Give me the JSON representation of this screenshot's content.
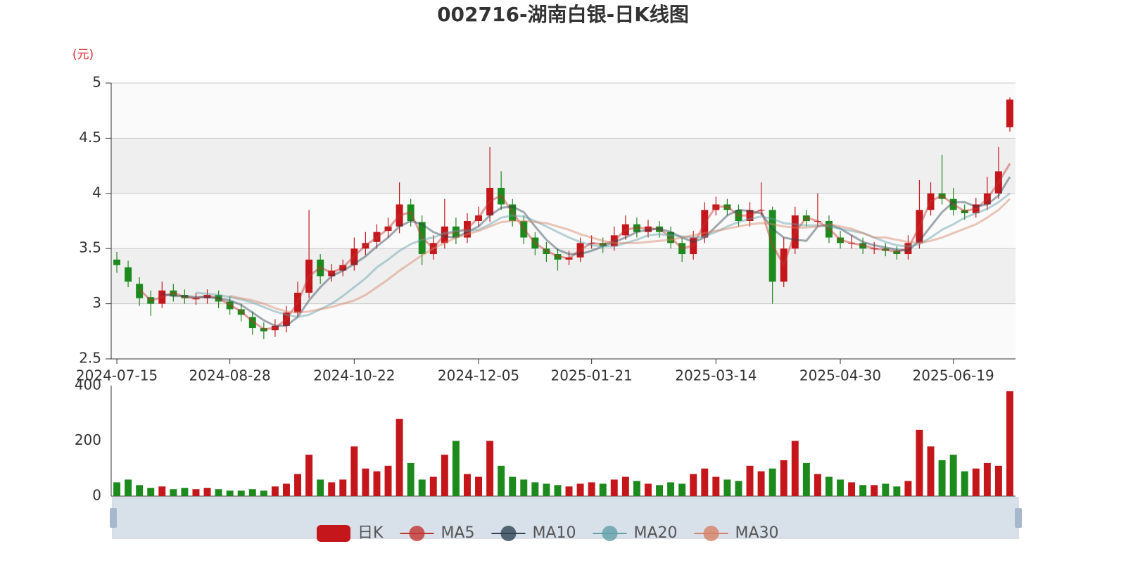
{
  "chart_data": {
    "type": "candlestick",
    "title": "002716-湖南白银-日K线图",
    "y_label": "(元)",
    "grid": true,
    "up_color": "#c4161b",
    "down_color": "#1d8a1d",
    "ylim": [
      2.5,
      5
    ],
    "yticks": [
      2.5,
      3,
      3.5,
      4,
      4.5,
      5
    ],
    "categories": [
      "2024-07-15",
      null,
      null,
      null,
      null,
      null,
      null,
      null,
      null,
      null,
      "2024-08-28",
      null,
      null,
      null,
      null,
      null,
      null,
      null,
      null,
      null,
      null,
      "2024-10-22",
      null,
      null,
      null,
      null,
      null,
      null,
      null,
      null,
      null,
      null,
      "2024-12-05",
      null,
      null,
      null,
      null,
      null,
      null,
      null,
      null,
      null,
      "2025-01-21",
      null,
      null,
      null,
      null,
      null,
      null,
      null,
      null,
      null,
      null,
      "2025-03-14",
      null,
      null,
      null,
      null,
      null,
      null,
      null,
      null,
      null,
      null,
      "2025-04-30",
      null,
      null,
      null,
      null,
      null,
      null,
      null,
      null,
      null,
      "2025-06-19",
      null,
      null,
      null,
      null,
      null
    ],
    "candles": {
      "name": "日K",
      "open": [
        3.4,
        3.33,
        3.18,
        3.06,
        3.0,
        3.12,
        3.08,
        3.04,
        3.05,
        3.08,
        3.02,
        2.95,
        2.88,
        2.78,
        2.76,
        2.8,
        2.92,
        3.1,
        3.4,
        3.25,
        3.3,
        3.35,
        3.5,
        3.56,
        3.66,
        3.7,
        3.9,
        3.74,
        3.45,
        3.55,
        3.7,
        3.6,
        3.75,
        3.8,
        4.05,
        3.9,
        3.75,
        3.6,
        3.5,
        3.45,
        3.4,
        3.42,
        3.55,
        3.55,
        3.52,
        3.62,
        3.72,
        3.65,
        3.7,
        3.65,
        3.55,
        3.45,
        3.6,
        3.85,
        3.9,
        3.85,
        3.75,
        3.85,
        3.85,
        3.2,
        3.5,
        3.8,
        3.75,
        3.75,
        3.6,
        3.55,
        3.55,
        3.5,
        3.5,
        3.48,
        3.45,
        3.55,
        3.85,
        4.0,
        3.95,
        3.85,
        3.82,
        3.9,
        4.0,
        4.6
      ],
      "close": [
        3.35,
        3.2,
        3.05,
        3.0,
        3.12,
        3.07,
        3.05,
        3.05,
        3.08,
        3.02,
        2.95,
        2.9,
        2.78,
        2.75,
        2.8,
        2.92,
        3.1,
        3.4,
        3.25,
        3.3,
        3.35,
        3.5,
        3.55,
        3.65,
        3.7,
        3.9,
        3.75,
        3.45,
        3.55,
        3.7,
        3.6,
        3.75,
        3.8,
        4.05,
        3.9,
        3.75,
        3.6,
        3.5,
        3.45,
        3.4,
        3.42,
        3.55,
        3.55,
        3.52,
        3.62,
        3.72,
        3.65,
        3.7,
        3.65,
        3.55,
        3.45,
        3.6,
        3.85,
        3.9,
        3.85,
        3.75,
        3.85,
        3.85,
        3.2,
        3.5,
        3.8,
        3.75,
        3.75,
        3.6,
        3.55,
        3.55,
        3.5,
        3.5,
        3.48,
        3.45,
        3.55,
        3.85,
        4.0,
        3.95,
        3.85,
        3.82,
        3.9,
        4.0,
        4.2,
        4.85
      ],
      "high": [
        3.47,
        3.39,
        3.24,
        3.12,
        3.2,
        3.18,
        3.13,
        3.1,
        3.13,
        3.12,
        3.07,
        3.0,
        2.93,
        2.83,
        2.86,
        2.98,
        3.2,
        3.85,
        3.45,
        3.36,
        3.4,
        3.6,
        3.65,
        3.72,
        3.78,
        4.1,
        3.95,
        3.8,
        3.62,
        3.95,
        3.78,
        3.82,
        3.88,
        4.42,
        4.2,
        3.95,
        3.8,
        3.65,
        3.56,
        3.5,
        3.48,
        3.6,
        3.62,
        3.6,
        3.7,
        3.8,
        3.78,
        3.76,
        3.75,
        3.7,
        3.6,
        3.66,
        3.92,
        3.97,
        3.95,
        3.9,
        3.92,
        4.1,
        3.88,
        3.6,
        3.88,
        3.85,
        4.0,
        3.8,
        3.66,
        3.62,
        3.6,
        3.56,
        3.55,
        3.52,
        3.62,
        4.12,
        4.1,
        4.35,
        4.05,
        3.9,
        3.96,
        4.15,
        4.42,
        4.87
      ],
      "low": [
        3.28,
        3.15,
        2.98,
        2.89,
        2.96,
        3.02,
        3.0,
        2.99,
        3.0,
        2.96,
        2.9,
        2.84,
        2.72,
        2.68,
        2.7,
        2.74,
        2.88,
        3.05,
        3.18,
        3.2,
        3.25,
        3.3,
        3.44,
        3.5,
        3.6,
        3.64,
        3.7,
        3.35,
        3.4,
        3.5,
        3.54,
        3.55,
        3.7,
        3.74,
        3.85,
        3.7,
        3.54,
        3.44,
        3.38,
        3.3,
        3.35,
        3.38,
        3.5,
        3.46,
        3.48,
        3.58,
        3.6,
        3.6,
        3.6,
        3.5,
        3.38,
        3.4,
        3.55,
        3.8,
        3.8,
        3.7,
        3.7,
        3.8,
        3.0,
        3.15,
        3.45,
        3.7,
        3.7,
        3.55,
        3.5,
        3.5,
        3.45,
        3.45,
        3.43,
        3.4,
        3.4,
        3.5,
        3.8,
        3.9,
        3.8,
        3.76,
        3.78,
        3.85,
        3.95,
        4.56
      ]
    },
    "ma": [
      {
        "name": "MA5",
        "color": "#c23531",
        "values": [
          null,
          null,
          3.13,
          3.03,
          3.06,
          3.1,
          3.06,
          3.05,
          3.07,
          3.05,
          2.99,
          2.93,
          2.84,
          2.77,
          2.78,
          2.86,
          3.01,
          3.25,
          3.33,
          3.28,
          3.33,
          3.43,
          3.53,
          3.6,
          3.68,
          3.8,
          3.83,
          3.6,
          3.5,
          3.63,
          3.65,
          3.68,
          3.78,
          3.93,
          3.98,
          3.83,
          3.68,
          3.55,
          3.48,
          3.43,
          3.41,
          3.49,
          3.55,
          3.54,
          3.57,
          3.67,
          3.69,
          3.68,
          3.68,
          3.6,
          3.5,
          3.53,
          3.73,
          3.88,
          3.88,
          3.8,
          3.8,
          3.85,
          3.53,
          3.35,
          3.65,
          3.78,
          3.75,
          3.68,
          3.58,
          3.55,
          3.53,
          3.5,
          3.49,
          3.47,
          3.5,
          3.7,
          3.93,
          3.98,
          3.9,
          3.84,
          3.86,
          3.95,
          4.1,
          4.27
        ]
      },
      {
        "name": "MA10",
        "color": "#2f4554",
        "values": [
          null,
          null,
          null,
          null,
          3.09,
          3.07,
          3.07,
          3.06,
          3.06,
          3.05,
          3.03,
          2.99,
          2.92,
          2.85,
          2.8,
          2.8,
          2.88,
          3.03,
          3.15,
          3.25,
          3.3,
          3.36,
          3.43,
          3.52,
          3.6,
          3.7,
          3.75,
          3.72,
          3.65,
          3.61,
          3.6,
          3.65,
          3.7,
          3.8,
          3.87,
          3.88,
          3.83,
          3.7,
          3.58,
          3.49,
          3.45,
          3.45,
          3.48,
          3.52,
          3.56,
          3.6,
          3.65,
          3.67,
          3.68,
          3.65,
          3.6,
          3.56,
          3.6,
          3.7,
          3.8,
          3.85,
          3.84,
          3.82,
          3.68,
          3.6,
          3.58,
          3.57,
          3.7,
          3.72,
          3.68,
          3.62,
          3.56,
          3.53,
          3.51,
          3.49,
          3.48,
          3.57,
          3.7,
          3.83,
          3.92,
          3.92,
          3.88,
          3.9,
          3.98,
          4.15
        ]
      },
      {
        "name": "MA20",
        "color": "#61a0a8",
        "values": [
          null,
          null,
          null,
          null,
          null,
          null,
          null,
          3.1,
          3.09,
          3.08,
          3.06,
          3.04,
          3.01,
          2.97,
          2.93,
          2.9,
          2.88,
          2.9,
          2.95,
          3.0,
          3.07,
          3.15,
          3.23,
          3.33,
          3.4,
          3.48,
          3.54,
          3.58,
          3.6,
          3.64,
          3.66,
          3.66,
          3.67,
          3.72,
          3.78,
          3.8,
          3.79,
          3.75,
          3.7,
          3.65,
          3.6,
          3.56,
          3.53,
          3.52,
          3.52,
          3.55,
          3.58,
          3.62,
          3.63,
          3.62,
          3.61,
          3.6,
          3.61,
          3.65,
          3.7,
          3.74,
          3.77,
          3.79,
          3.77,
          3.73,
          3.72,
          3.71,
          3.71,
          3.7,
          3.68,
          3.66,
          3.64,
          3.6,
          3.56,
          3.53,
          3.52,
          3.54,
          3.6,
          3.67,
          3.72,
          3.78,
          3.82,
          3.86,
          3.92,
          4.0
        ]
      },
      {
        "name": "MA30",
        "color": "#d48265",
        "values": [
          null,
          null,
          null,
          null,
          null,
          null,
          null,
          null,
          null,
          null,
          3.07,
          3.05,
          3.03,
          3.0,
          2.96,
          2.93,
          2.92,
          2.93,
          2.95,
          2.97,
          3.0,
          3.03,
          3.08,
          3.15,
          3.22,
          3.3,
          3.37,
          3.44,
          3.5,
          3.55,
          3.6,
          3.63,
          3.66,
          3.7,
          3.74,
          3.75,
          3.75,
          3.74,
          3.73,
          3.7,
          3.67,
          3.63,
          3.6,
          3.57,
          3.55,
          3.55,
          3.55,
          3.56,
          3.57,
          3.58,
          3.6,
          3.62,
          3.64,
          3.66,
          3.68,
          3.7,
          3.72,
          3.73,
          3.72,
          3.7,
          3.69,
          3.69,
          3.7,
          3.72,
          3.7,
          3.68,
          3.64,
          3.6,
          3.6,
          3.58,
          3.56,
          3.55,
          3.57,
          3.6,
          3.64,
          3.68,
          3.72,
          3.78,
          3.85,
          3.95
        ]
      }
    ],
    "volume": {
      "ylim": [
        0,
        400
      ],
      "yticks": [
        0,
        200,
        400
      ],
      "values": [
        50,
        60,
        40,
        30,
        35,
        25,
        30,
        25,
        30,
        25,
        20,
        20,
        25,
        20,
        35,
        45,
        80,
        150,
        60,
        50,
        60,
        180,
        100,
        90,
        110,
        280,
        120,
        60,
        70,
        150,
        200,
        80,
        70,
        200,
        110,
        70,
        60,
        50,
        45,
        40,
        35,
        45,
        50,
        45,
        60,
        70,
        55,
        45,
        40,
        50,
        45,
        80,
        100,
        70,
        60,
        55,
        110,
        90,
        100,
        130,
        200,
        120,
        80,
        70,
        60,
        50,
        40,
        40,
        45,
        35,
        55,
        240,
        180,
        130,
        150,
        90,
        100,
        120,
        110,
        380
      ]
    }
  }
}
